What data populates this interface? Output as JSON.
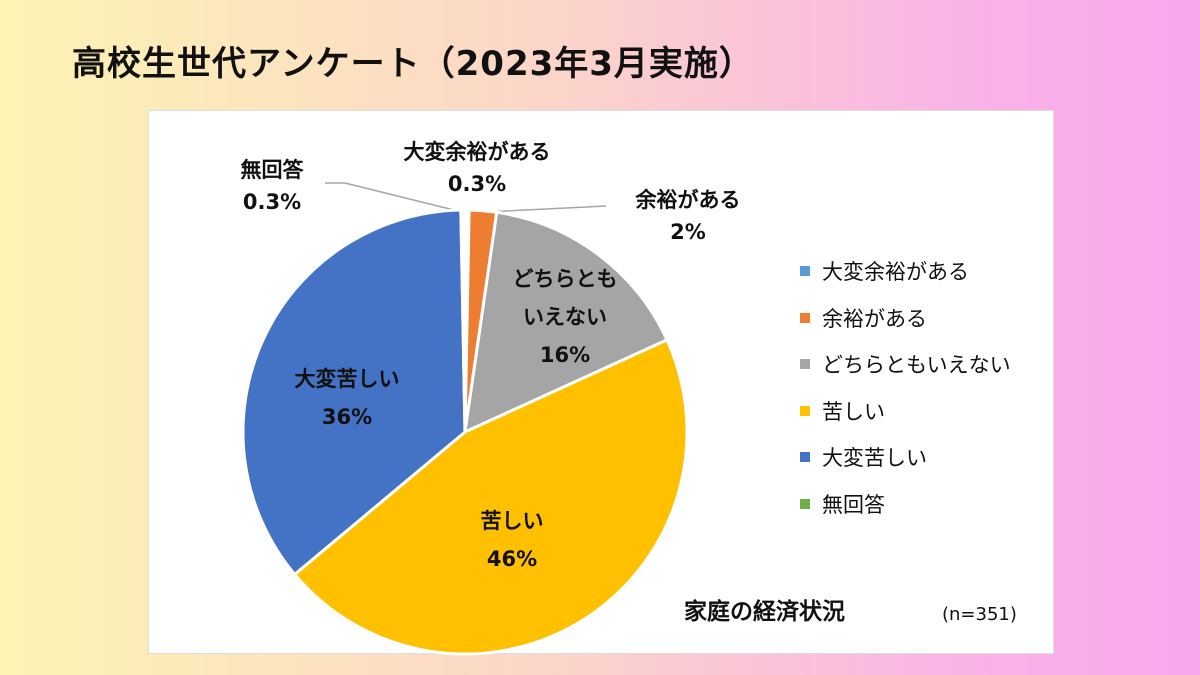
{
  "title": "高校生世代アンケート（2023年3月実施）",
  "chart_data": {
    "type": "pie",
    "title": "家庭の経済状況",
    "note": "(n=351)",
    "categories": [
      "大変余裕がある",
      "余裕がある",
      "どちらともいえない",
      "苦しい",
      "大変苦しい",
      "無回答"
    ],
    "values": [
      0.3,
      2,
      16,
      46,
      36,
      0.3
    ],
    "value_labels": [
      "0.3%",
      "2%",
      "16%",
      "46%",
      "36%",
      "0.3%"
    ],
    "colors": [
      "#5b9bd5",
      "#ed7d31",
      "#a5a5a5",
      "#ffc000",
      "#4472c4",
      "#70ad47"
    ],
    "legend_position": "right"
  }
}
